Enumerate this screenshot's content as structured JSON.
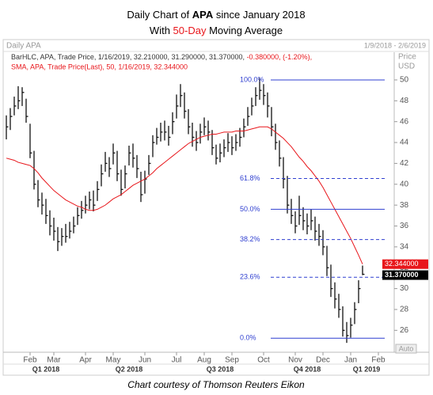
{
  "chart_data": {
    "type": "hlc",
    "title": [
      "Daily Chart of ",
      "APA",
      " since January 2018"
    ],
    "subtitle": [
      "With ",
      "50-Day",
      " Moving Average"
    ],
    "panel_label": "Daily APA",
    "date_range": "1/9/2018 - 2/6/2019",
    "legend": {
      "bars": [
        "BarHLC, APA, Trade Price, 1/16/2019, 32.210000, 31.290000, 31.370000, ",
        "-0.380000, (-1.20%),"
      ],
      "sma": "SMA, APA, Trade Price(Last), 50, 1/16/2019, 32.344000"
    },
    "y_axis_label": [
      "Price",
      "USD"
    ],
    "auto_label": "Auto",
    "footer": "Chart courtesy of Thomson Reuters Eikon",
    "bar_color": "#111111",
    "categories": [
      null,
      null,
      null,
      null,
      null,
      null,
      "Feb",
      null,
      null,
      null,
      null,
      null,
      "Mar",
      null,
      null,
      null,
      null,
      null,
      null,
      null,
      "Apr",
      null,
      null,
      null,
      null,
      null,
      null,
      "May",
      null,
      null,
      null,
      null,
      null,
      null,
      null,
      "Jun",
      null,
      null,
      null,
      null,
      null,
      null,
      null,
      "Jul",
      null,
      null,
      null,
      null,
      null,
      null,
      "Aug",
      null,
      null,
      null,
      null,
      null,
      null,
      "Sep",
      null,
      null,
      null,
      null,
      null,
      null,
      null,
      "Oct",
      null,
      null,
      null,
      null,
      null,
      null,
      null,
      "Nov",
      null,
      null,
      null,
      null,
      null,
      null,
      "Dec",
      null,
      null,
      null,
      null,
      null,
      null,
      "Jan",
      null,
      null,
      null,
      null,
      null,
      null,
      "Feb",
      null,
      null,
      null,
      null
    ],
    "quarters": [
      null,
      null,
      null,
      null,
      null,
      null,
      null,
      null,
      null,
      null,
      "Q1 2018",
      null,
      null,
      null,
      null,
      null,
      null,
      null,
      null,
      null,
      null,
      null,
      null,
      null,
      null,
      null,
      null,
      null,
      null,
      null,
      null,
      "Q2 2018",
      null,
      null,
      null,
      null,
      null,
      null,
      null,
      null,
      null,
      null,
      null,
      null,
      null,
      null,
      null,
      null,
      null,
      null,
      null,
      null,
      null,
      null,
      "Q3 2018",
      null,
      null,
      null,
      null,
      null,
      null,
      null,
      null,
      null,
      null,
      null,
      null,
      null,
      null,
      null,
      null,
      null,
      null,
      null,
      null,
      null,
      "Q4 2018",
      null,
      null,
      null,
      null,
      null,
      null,
      null,
      null,
      null,
      null,
      null,
      null,
      null,
      null,
      "Q1 2019",
      null,
      null,
      null,
      null,
      null,
      null,
      null
    ],
    "high": [
      46.6,
      47.3,
      48.4,
      49.4,
      49.3,
      48.2,
      45.8,
      43.2,
      40.4,
      39.2,
      38.6,
      37.5,
      36.8,
      35.9,
      35.8,
      36.2,
      36.4,
      36.9,
      37.8,
      38.4,
      38.9,
      39.3,
      39.4,
      40.3,
      41.9,
      43.1,
      42.6,
      43.9,
      43.2,
      41.4,
      41.8,
      43.7,
      43.9,
      42.8,
      41.2,
      41.3,
      42.8,
      44.7,
      45.4,
      45.9,
      46.1,
      45.6,
      46.9,
      48.6,
      49.6,
      48.8,
      47.2,
      45.9,
      45.1,
      45.8,
      46.4,
      46.1,
      45.2,
      43.8,
      43.9,
      44.3,
      44.9,
      44.6,
      44.8,
      45.4,
      46.3,
      47.4,
      48.3,
      49.3,
      50.2,
      49.6,
      48.8,
      47.4,
      45.8,
      44.2,
      42.6,
      40.8,
      38.6,
      37.4,
      38.9,
      37.8,
      37.2,
      37.6,
      36.9,
      36.2,
      35.6,
      34.1,
      32.3,
      30.6,
      29.5,
      28.3,
      26.8,
      27.2,
      28.7,
      30.8,
      32.21,
      null,
      null,
      null,
      null,
      null,
      null,
      null,
      null
    ],
    "low": [
      44.3,
      45.2,
      46.6,
      47.2,
      47.5,
      45.9,
      42.5,
      39.5,
      37.8,
      37.1,
      36.2,
      35.1,
      34.6,
      33.6,
      34.1,
      34.4,
      34.8,
      35.3,
      36.1,
      36.7,
      37.2,
      37.6,
      37.4,
      38.4,
      39.8,
      41.2,
      40.7,
      41.9,
      40.3,
      38.9,
      39.6,
      41.8,
      41.6,
      40.6,
      38.3,
      39.1,
      40.9,
      42.6,
      43.8,
      44.1,
      44.2,
      43.7,
      44.8,
      46.3,
      47.4,
      46.3,
      44.8,
      43.6,
      43.2,
      43.9,
      44.7,
      44.2,
      42.8,
      41.9,
      42.1,
      42.6,
      43.1,
      42.8,
      43.2,
      43.6,
      44.5,
      45.6,
      46.6,
      47.5,
      48.1,
      47.6,
      46.4,
      44.6,
      43.3,
      41.7,
      39.6,
      37.2,
      36.2,
      35.3,
      36.1,
      35.6,
      35.2,
      35.6,
      34.6,
      34.1,
      33.2,
      31.2,
      29.2,
      28.1,
      27.2,
      25.4,
      24.8,
      25.3,
      26.6,
      28.6,
      31.29,
      null,
      null,
      null,
      null,
      null,
      null,
      null,
      null
    ],
    "close": [
      45.5,
      46.5,
      47.5,
      48,
      48.8,
      46.5,
      43,
      40,
      38.5,
      38,
      37,
      36,
      35.5,
      34.5,
      35,
      35,
      35.5,
      36,
      37,
      37.5,
      38,
      38.5,
      38,
      39.5,
      41,
      42,
      41.5,
      43,
      41,
      39.5,
      41,
      43,
      42.5,
      41.5,
      39,
      40.5,
      42,
      44,
      44.5,
      45,
      45,
      44.5,
      46,
      47.5,
      48.5,
      47,
      45.5,
      44.5,
      44,
      45,
      45.5,
      45,
      43.5,
      42.5,
      43,
      43.5,
      44,
      43.5,
      44,
      44.5,
      45.5,
      46.5,
      47.5,
      48.5,
      49,
      48.5,
      47.5,
      45.5,
      44,
      42.5,
      40.5,
      38,
      37,
      36,
      37,
      36.5,
      36,
      36.5,
      35.5,
      35,
      34,
      32,
      30,
      29,
      28,
      26,
      25.5,
      26.5,
      28,
      30,
      31.37,
      null,
      null,
      null,
      null,
      null,
      null,
      null,
      null
    ],
    "close_label": "31.370000",
    "sma": {
      "color": "#e8161b",
      "label": "32.344000",
      "values": [
        42.5,
        42.4,
        42.3,
        42.1,
        42,
        41.9,
        41.8,
        41.5,
        41.1,
        40.6,
        40.2,
        39.8,
        39.4,
        39.1,
        38.8,
        38.5,
        38.3,
        38.1,
        37.9,
        37.8,
        37.6,
        37.5,
        37.5,
        37.6,
        37.8,
        38,
        38.3,
        38.6,
        38.8,
        39,
        39.3,
        39.6,
        39.9,
        40.1,
        40.3,
        40.5,
        40.8,
        41.1,
        41.5,
        41.8,
        42.1,
        42.4,
        42.7,
        43,
        43.3,
        43.6,
        43.9,
        44.1,
        44.3,
        44.5,
        44.6,
        44.7,
        44.8,
        44.8,
        44.9,
        45,
        45,
        45,
        45.1,
        45.1,
        45.1,
        45.2,
        45.3,
        45.4,
        45.5,
        45.5,
        45.5,
        45.3,
        45,
        44.7,
        44.4,
        44,
        43.6,
        43.1,
        42.6,
        42.2,
        41.7,
        41.3,
        40.8,
        40.3,
        39.7,
        39,
        38.3,
        37.6,
        36.9,
        36.2,
        35.5,
        34.8,
        34,
        33.2,
        32.344,
        null,
        null,
        null,
        null,
        null,
        null,
        null,
        null
      ]
    },
    "fib_color": "#2f3fd0",
    "fib_levels": [
      {
        "label": "100.0%",
        "price": 50,
        "dashed": false
      },
      {
        "label": "61.8%",
        "price": 40.55,
        "dashed": true
      },
      {
        "label": "50.0%",
        "price": 37.6,
        "dashed": false
      },
      {
        "label": "38.2%",
        "price": 34.7,
        "dashed": true
      },
      {
        "label": "23.6%",
        "price": 31.09,
        "dashed": true
      },
      {
        "label": "0.0%",
        "price": 25.25,
        "dashed": false
      }
    ],
    "ylim": [
      23.9,
      52.5
    ],
    "yticks": [
      26,
      28,
      30,
      32,
      34,
      36,
      38,
      40,
      42,
      44,
      46,
      48,
      50
    ],
    "grid": false
  }
}
